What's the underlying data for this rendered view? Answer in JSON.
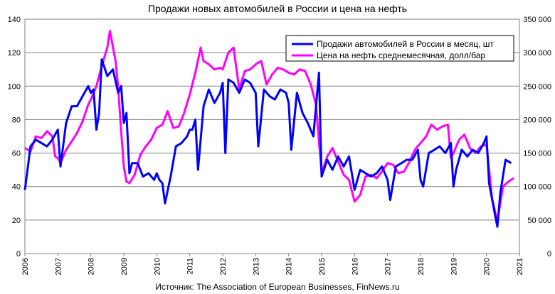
{
  "chart_data": {
    "type": "line",
    "title": "Продажи новых автомобилей в России и цена на нефть",
    "source": "Источник: The Association of European Businesses, FinNews.ru",
    "x_ticks": [
      "2006",
      "2007",
      "2008",
      "2009",
      "2010",
      "2011",
      "2012",
      "2013",
      "2014",
      "2015",
      "2016",
      "2017",
      "2018",
      "2019",
      "2020",
      "2021"
    ],
    "xlim": [
      2006,
      2021
    ],
    "left_axis": {
      "ylim": [
        0,
        140
      ],
      "ticks": [
        "0",
        "20",
        "40",
        "60",
        "80",
        "100",
        "120",
        "140"
      ],
      "values": [
        0,
        20,
        40,
        60,
        80,
        100,
        120,
        140
      ]
    },
    "right_axis": {
      "ylim": [
        0,
        350000
      ],
      "ticks": [
        "0",
        "50 000",
        "100 000",
        "150 000",
        "200 000",
        "250 000",
        "300 000",
        "350 000"
      ],
      "values": [
        0,
        50000,
        100000,
        150000,
        200000,
        250000,
        300000,
        350000
      ]
    },
    "grid": true,
    "legend_position": "top-right",
    "series": [
      {
        "name": "Продажи автомобилей в России в месяц, шт",
        "axis": "right",
        "color": "#0000ff",
        "points": [
          [
            2006.0,
            95000
          ],
          [
            2006.17,
            160000
          ],
          [
            2006.33,
            170000
          ],
          [
            2006.5,
            165000
          ],
          [
            2006.67,
            160000
          ],
          [
            2006.83,
            170000
          ],
          [
            2007.0,
            185000
          ],
          [
            2007.08,
            130000
          ],
          [
            2007.25,
            195000
          ],
          [
            2007.42,
            220000
          ],
          [
            2007.58,
            220000
          ],
          [
            2007.75,
            235000
          ],
          [
            2007.92,
            250000
          ],
          [
            2008.0,
            240000
          ],
          [
            2008.08,
            245000
          ],
          [
            2008.17,
            185000
          ],
          [
            2008.25,
            210000
          ],
          [
            2008.33,
            290000
          ],
          [
            2008.5,
            265000
          ],
          [
            2008.67,
            275000
          ],
          [
            2008.83,
            240000
          ],
          [
            2008.92,
            250000
          ],
          [
            2009.0,
            195000
          ],
          [
            2009.08,
            210000
          ],
          [
            2009.17,
            120000
          ],
          [
            2009.25,
            135000
          ],
          [
            2009.42,
            135000
          ],
          [
            2009.58,
            115000
          ],
          [
            2009.75,
            120000
          ],
          [
            2009.92,
            110000
          ],
          [
            2010.0,
            120000
          ],
          [
            2010.08,
            110000
          ],
          [
            2010.17,
            105000
          ],
          [
            2010.25,
            75000
          ],
          [
            2010.42,
            115000
          ],
          [
            2010.58,
            160000
          ],
          [
            2010.75,
            165000
          ],
          [
            2010.92,
            175000
          ],
          [
            2011.0,
            185000
          ],
          [
            2011.08,
            185000
          ],
          [
            2011.17,
            200000
          ],
          [
            2011.25,
            125000
          ],
          [
            2011.42,
            220000
          ],
          [
            2011.58,
            245000
          ],
          [
            2011.75,
            225000
          ],
          [
            2011.92,
            240000
          ],
          [
            2012.0,
            255000
          ],
          [
            2012.08,
            150000
          ],
          [
            2012.17,
            260000
          ],
          [
            2012.33,
            255000
          ],
          [
            2012.5,
            240000
          ],
          [
            2012.67,
            260000
          ],
          [
            2012.83,
            255000
          ],
          [
            2013.0,
            240000
          ],
          [
            2013.08,
            160000
          ],
          [
            2013.25,
            245000
          ],
          [
            2013.42,
            235000
          ],
          [
            2013.58,
            230000
          ],
          [
            2013.75,
            245000
          ],
          [
            2013.92,
            240000
          ],
          [
            2014.0,
            225000
          ],
          [
            2014.08,
            155000
          ],
          [
            2014.25,
            240000
          ],
          [
            2014.42,
            210000
          ],
          [
            2014.58,
            195000
          ],
          [
            2014.75,
            175000
          ],
          [
            2014.92,
            270000
          ],
          [
            2015.0,
            115000
          ],
          [
            2015.17,
            140000
          ],
          [
            2015.33,
            125000
          ],
          [
            2015.5,
            145000
          ],
          [
            2015.67,
            130000
          ],
          [
            2015.83,
            145000
          ],
          [
            2016.0,
            95000
          ],
          [
            2016.17,
            125000
          ],
          [
            2016.33,
            120000
          ],
          [
            2016.5,
            115000
          ],
          [
            2016.67,
            120000
          ],
          [
            2016.83,
            130000
          ],
          [
            2017.0,
            110000
          ],
          [
            2017.08,
            80000
          ],
          [
            2017.25,
            130000
          ],
          [
            2017.42,
            135000
          ],
          [
            2017.58,
            140000
          ],
          [
            2017.75,
            140000
          ],
          [
            2017.92,
            155000
          ],
          [
            2018.0,
            110000
          ],
          [
            2018.08,
            100000
          ],
          [
            2018.25,
            150000
          ],
          [
            2018.42,
            155000
          ],
          [
            2018.58,
            160000
          ],
          [
            2018.75,
            150000
          ],
          [
            2018.92,
            165000
          ],
          [
            2019.0,
            100000
          ],
          [
            2019.08,
            125000
          ],
          [
            2019.25,
            155000
          ],
          [
            2019.42,
            145000
          ],
          [
            2019.58,
            155000
          ],
          [
            2019.75,
            150000
          ],
          [
            2019.92,
            165000
          ],
          [
            2020.0,
            175000
          ],
          [
            2020.08,
            105000
          ],
          [
            2020.25,
            60000
          ],
          [
            2020.33,
            40000
          ],
          [
            2020.42,
            90000
          ],
          [
            2020.58,
            140000
          ],
          [
            2020.75,
            135000
          ]
        ]
      },
      {
        "name": "Цена на нефть среднемесячная, долл/бар",
        "axis": "left",
        "color": "#ff00ff",
        "points": [
          [
            2006.0,
            63
          ],
          [
            2006.17,
            61
          ],
          [
            2006.33,
            70
          ],
          [
            2006.5,
            69
          ],
          [
            2006.67,
            73
          ],
          [
            2006.83,
            70
          ],
          [
            2006.92,
            58
          ],
          [
            2007.0,
            57
          ],
          [
            2007.08,
            54
          ],
          [
            2007.25,
            62
          ],
          [
            2007.42,
            67
          ],
          [
            2007.58,
            72
          ],
          [
            2007.75,
            79
          ],
          [
            2007.92,
            89
          ],
          [
            2008.0,
            92
          ],
          [
            2008.17,
            100
          ],
          [
            2008.33,
            112
          ],
          [
            2008.5,
            123
          ],
          [
            2008.58,
            133
          ],
          [
            2008.75,
            115
          ],
          [
            2008.83,
            99
          ],
          [
            2008.92,
            73
          ],
          [
            2009.0,
            52
          ],
          [
            2009.08,
            43
          ],
          [
            2009.17,
            42
          ],
          [
            2009.33,
            47
          ],
          [
            2009.5,
            59
          ],
          [
            2009.67,
            64
          ],
          [
            2009.83,
            68
          ],
          [
            2010.0,
            75
          ],
          [
            2010.17,
            77
          ],
          [
            2010.33,
            85
          ],
          [
            2010.5,
            75
          ],
          [
            2010.67,
            76
          ],
          [
            2010.83,
            84
          ],
          [
            2011.0,
            95
          ],
          [
            2011.17,
            108
          ],
          [
            2011.33,
            123
          ],
          [
            2011.42,
            115
          ],
          [
            2011.58,
            113
          ],
          [
            2011.75,
            110
          ],
          [
            2011.92,
            111
          ],
          [
            2012.0,
            110
          ],
          [
            2012.17,
            120
          ],
          [
            2012.33,
            123
          ],
          [
            2012.5,
            98
          ],
          [
            2012.67,
            109
          ],
          [
            2012.83,
            110
          ],
          [
            2013.0,
            113
          ],
          [
            2013.17,
            115
          ],
          [
            2013.33,
            101
          ],
          [
            2013.5,
            107
          ],
          [
            2013.67,
            111
          ],
          [
            2013.83,
            110
          ],
          [
            2014.0,
            108
          ],
          [
            2014.17,
            107
          ],
          [
            2014.33,
            110
          ],
          [
            2014.5,
            109
          ],
          [
            2014.67,
            101
          ],
          [
            2014.83,
            89
          ],
          [
            2015.0,
            48
          ],
          [
            2015.17,
            58
          ],
          [
            2015.33,
            63
          ],
          [
            2015.5,
            55
          ],
          [
            2015.67,
            47
          ],
          [
            2015.83,
            44
          ],
          [
            2016.0,
            31
          ],
          [
            2016.17,
            35
          ],
          [
            2016.33,
            46
          ],
          [
            2016.5,
            47
          ],
          [
            2016.67,
            45
          ],
          [
            2016.83,
            49
          ],
          [
            2017.0,
            54
          ],
          [
            2017.17,
            53
          ],
          [
            2017.33,
            48
          ],
          [
            2017.5,
            49
          ],
          [
            2017.67,
            55
          ],
          [
            2017.83,
            62
          ],
          [
            2018.0,
            66
          ],
          [
            2018.17,
            70
          ],
          [
            2018.33,
            77
          ],
          [
            2018.5,
            74
          ],
          [
            2018.67,
            76
          ],
          [
            2018.83,
            77
          ],
          [
            2018.92,
            57
          ],
          [
            2019.0,
            60
          ],
          [
            2019.17,
            68
          ],
          [
            2019.33,
            71
          ],
          [
            2019.5,
            63
          ],
          [
            2019.67,
            60
          ],
          [
            2019.83,
            64
          ],
          [
            2020.0,
            65
          ],
          [
            2020.17,
            33
          ],
          [
            2020.33,
            19
          ],
          [
            2020.5,
            40
          ],
          [
            2020.67,
            43
          ],
          [
            2020.83,
            45
          ]
        ]
      }
    ]
  }
}
